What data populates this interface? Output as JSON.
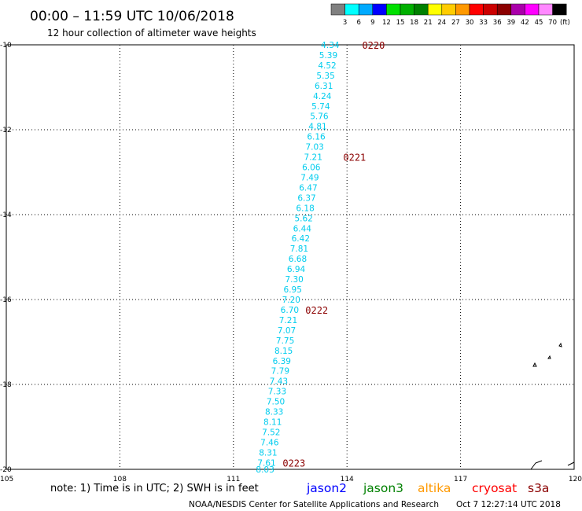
{
  "header": {
    "title": "00:00 – 11:59 UTC 10/06/2018",
    "subtitle": "12 hour collection of altimeter wave heights"
  },
  "legend": {
    "unit": "(ft)",
    "bins": [
      {
        "label": "3",
        "color": "#808080"
      },
      {
        "label": "6",
        "color": "#00ffff"
      },
      {
        "label": "9",
        "color": "#00aaff"
      },
      {
        "label": "12",
        "color": "#0000ff"
      },
      {
        "label": "15",
        "color": "#00e000"
      },
      {
        "label": "18",
        "color": "#00b000"
      },
      {
        "label": "21",
        "color": "#008000"
      },
      {
        "label": "24",
        "color": "#ffff00"
      },
      {
        "label": "27",
        "color": "#ffcc00"
      },
      {
        "label": "30",
        "color": "#ff9900"
      },
      {
        "label": "33",
        "color": "#ff0000"
      },
      {
        "label": "36",
        "color": "#cc0000"
      },
      {
        "label": "39",
        "color": "#8b0000"
      },
      {
        "label": "42",
        "color": "#aa00aa"
      },
      {
        "label": "45",
        "color": "#ff00ff"
      },
      {
        "label": "70",
        "color": "#ff88ff"
      },
      {
        "label": "",
        "color": "#000000"
      }
    ]
  },
  "footer": {
    "note": "note: 1) Time is in UTC; 2) SWH is in feet",
    "satellites": [
      {
        "name": "jason2",
        "color": "#0000ff"
      },
      {
        "name": "jason3",
        "color": "#008000"
      },
      {
        "name": "altika",
        "color": "#ff9900"
      },
      {
        "name": "cryosat",
        "color": "#ff0000"
      },
      {
        "name": "s3a",
        "color": "#8b0000"
      }
    ],
    "credit": "NOAA/NESDIS Center for Satellite Applications and Research",
    "timestamp": "Oct  7 12:27:14 UTC 2018"
  },
  "chart_data": {
    "type": "scatter",
    "title": "12 hour collection of altimeter wave heights",
    "xlabel": "",
    "ylabel": "",
    "xlim": [
      105,
      120
    ],
    "ylim": [
      -20,
      -10
    ],
    "x_ticks": [
      "105",
      "108",
      "111",
      "114",
      "117",
      "120"
    ],
    "y_ticks": [
      "-10",
      "-12",
      "-14",
      "-16",
      "-18",
      "-20"
    ],
    "grid": true,
    "value_color": "#00ccee",
    "time_color": "#8b0000",
    "points": [
      {
        "lon": 113.8,
        "lat": -10.0,
        "value": "4.34"
      },
      {
        "lon": 113.75,
        "lat": -10.24,
        "value": "5.39"
      },
      {
        "lon": 113.72,
        "lat": -10.48,
        "value": "4.52"
      },
      {
        "lon": 113.68,
        "lat": -10.72,
        "value": "5.35"
      },
      {
        "lon": 113.63,
        "lat": -10.96,
        "value": "6.31"
      },
      {
        "lon": 113.59,
        "lat": -11.2,
        "value": "4.24"
      },
      {
        "lon": 113.55,
        "lat": -11.44,
        "value": "5.74"
      },
      {
        "lon": 113.51,
        "lat": -11.68,
        "value": "5.76"
      },
      {
        "lon": 113.47,
        "lat": -11.92,
        "value": "4.81"
      },
      {
        "lon": 113.43,
        "lat": -12.16,
        "value": "6.16"
      },
      {
        "lon": 113.39,
        "lat": -12.4,
        "value": "7.03"
      },
      {
        "lon": 113.35,
        "lat": -12.64,
        "value": "7.21"
      },
      {
        "lon": 113.3,
        "lat": -12.88,
        "value": "6.06"
      },
      {
        "lon": 113.26,
        "lat": -13.12,
        "value": "7.49"
      },
      {
        "lon": 113.22,
        "lat": -13.36,
        "value": "6.47"
      },
      {
        "lon": 113.18,
        "lat": -13.6,
        "value": "6.37"
      },
      {
        "lon": 113.14,
        "lat": -13.84,
        "value": "6.18"
      },
      {
        "lon": 113.1,
        "lat": -14.08,
        "value": "5.62"
      },
      {
        "lon": 113.06,
        "lat": -14.32,
        "value": "6.44"
      },
      {
        "lon": 113.02,
        "lat": -14.56,
        "value": "6.42"
      },
      {
        "lon": 112.98,
        "lat": -14.8,
        "value": "7.81"
      },
      {
        "lon": 112.94,
        "lat": -15.04,
        "value": "6.68"
      },
      {
        "lon": 112.9,
        "lat": -15.28,
        "value": "6.94"
      },
      {
        "lon": 112.85,
        "lat": -15.52,
        "value": "7.30"
      },
      {
        "lon": 112.81,
        "lat": -15.76,
        "value": "6.95"
      },
      {
        "lon": 112.77,
        "lat": -16.0,
        "value": "7.20"
      },
      {
        "lon": 112.73,
        "lat": -16.24,
        "value": "6.70"
      },
      {
        "lon": 112.69,
        "lat": -16.48,
        "value": "7.21"
      },
      {
        "lon": 112.65,
        "lat": -16.72,
        "value": "7.07"
      },
      {
        "lon": 112.61,
        "lat": -16.96,
        "value": "7.75"
      },
      {
        "lon": 112.57,
        "lat": -17.2,
        "value": "8.15"
      },
      {
        "lon": 112.52,
        "lat": -17.44,
        "value": "6.39"
      },
      {
        "lon": 112.48,
        "lat": -17.68,
        "value": "7.79"
      },
      {
        "lon": 112.44,
        "lat": -17.92,
        "value": "7.43"
      },
      {
        "lon": 112.4,
        "lat": -18.16,
        "value": "7.33"
      },
      {
        "lon": 112.36,
        "lat": -18.4,
        "value": "7.50"
      },
      {
        "lon": 112.32,
        "lat": -18.64,
        "value": "8.33"
      },
      {
        "lon": 112.28,
        "lat": -18.88,
        "value": "8.11"
      },
      {
        "lon": 112.24,
        "lat": -19.12,
        "value": "7.52"
      },
      {
        "lon": 112.2,
        "lat": -19.36,
        "value": "7.46"
      },
      {
        "lon": 112.16,
        "lat": -19.6,
        "value": "8.31"
      },
      {
        "lon": 112.12,
        "lat": -19.84,
        "value": "7.61"
      },
      {
        "lon": 112.08,
        "lat": -20.0,
        "value": "8.03"
      }
    ],
    "time_labels": [
      {
        "lon": 114.4,
        "lat": -10.0,
        "label": "0220"
      },
      {
        "lon": 113.9,
        "lat": -12.64,
        "label": "0221"
      },
      {
        "lon": 112.9,
        "lat": -16.24,
        "label": "0222"
      },
      {
        "lon": 112.3,
        "lat": -19.84,
        "label": "0223"
      }
    ]
  }
}
